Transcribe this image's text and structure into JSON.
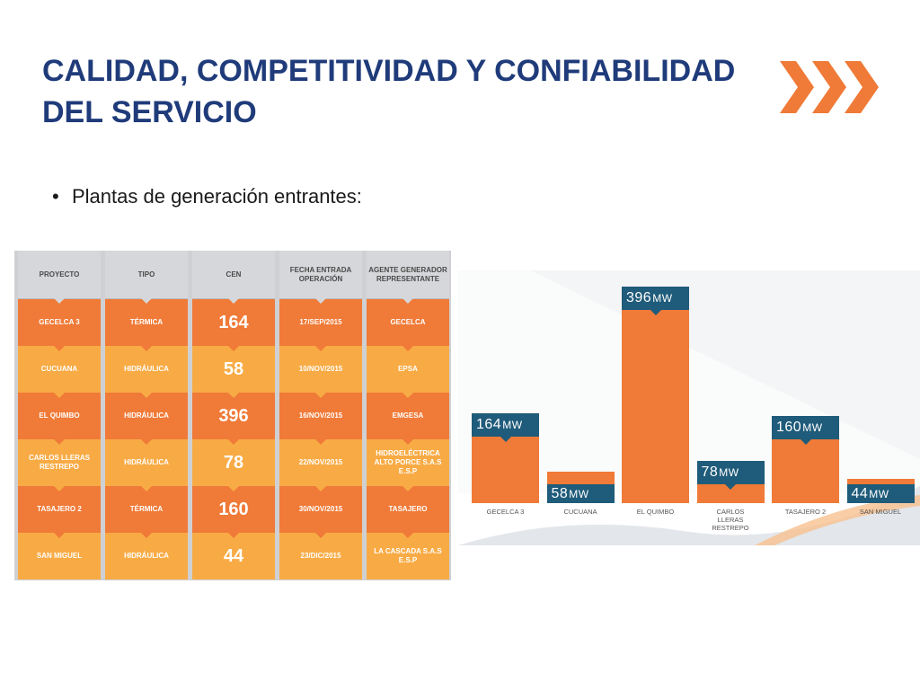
{
  "slide": {
    "title_line1": "CALIDAD, COMPETITIVIDAD Y CONFIABILIDAD",
    "title_line2": "DEL SERVICIO",
    "bullet": "Plantas de generación entrantes:",
    "colors": {
      "title": "#1f3b7a",
      "accent_orange": "#f07a37",
      "light_orange": "#f8ab45",
      "teal": "#1f5b7a"
    },
    "icons": [
      "chevrons-right-icon"
    ]
  },
  "table": {
    "headers": [
      "PROYECTO",
      "TIPO",
      "CEN",
      "FECHA ENTRADA OPERACIÓN",
      "AGENTE GENERADOR REPRESENTANTE"
    ],
    "rows": [
      [
        "GECELCA 3",
        "TÉRMICA",
        "164",
        "17/SEP/2015",
        "GECELCA"
      ],
      [
        "CUCUANA",
        "HIDRÁULICA",
        "58",
        "10/NOV/2015",
        "EPSA"
      ],
      [
        "EL QUIMBO",
        "HIDRÁULICA",
        "396",
        "16/NOV/2015",
        "EMGESA"
      ],
      [
        "CARLOS LLERAS RESTREPO",
        "HIDRÁULICA",
        "78",
        "22/NOV/2015",
        "HIDROELÉCTRICA ALTO PORCE S.A.S E.S.P"
      ],
      [
        "TASAJERO 2",
        "TÉRMICA",
        "160",
        "30/NOV/2015",
        "TASAJERO"
      ],
      [
        "SAN MIGUEL",
        "HIDRÁULICA",
        "44",
        "23/DIC/2015",
        "LA CASCADA S.A.S E.S.P"
      ]
    ]
  },
  "chart_data": {
    "type": "bar",
    "categories": [
      "GECELCA 3",
      "CUCUANA",
      "EL QUIMBO",
      "CARLOS LLERAS RESTREPO",
      "TASAJERO 2",
      "SAN MIGUEL"
    ],
    "values": [
      164,
      58,
      396,
      78,
      160,
      44
    ],
    "value_labels": [
      "164",
      "58",
      "396",
      "78",
      "160",
      "44"
    ],
    "unit": "MW",
    "ylim": [
      0,
      396
    ],
    "grid": false,
    "legend": "none"
  }
}
